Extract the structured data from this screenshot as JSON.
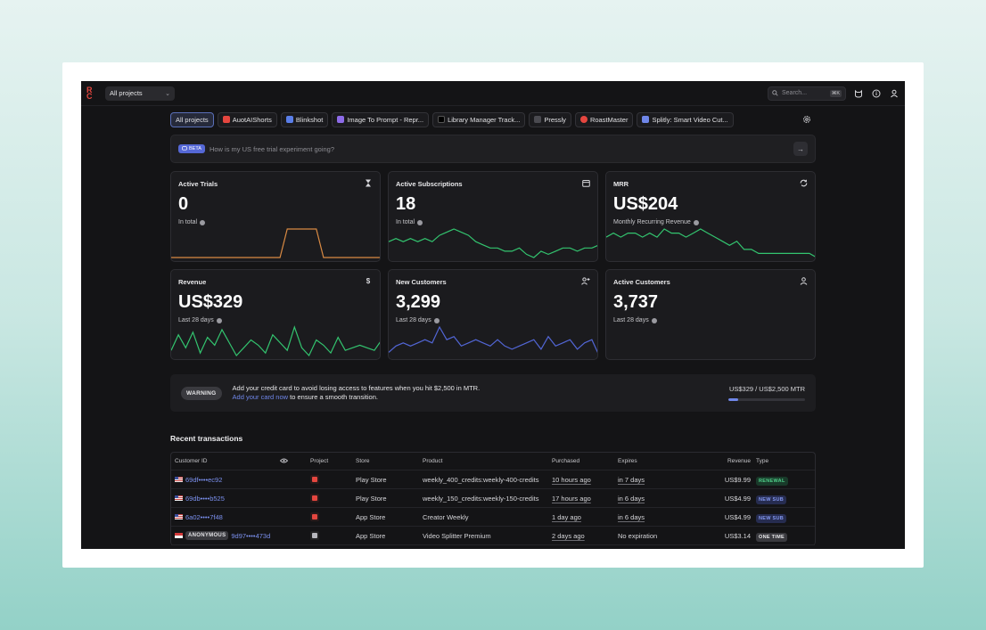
{
  "topbar": {
    "logo": [
      "R",
      "C"
    ],
    "project_select": "All projects",
    "search_placeholder": "Search...",
    "search_shortcut": "⌘K"
  },
  "tabs": [
    {
      "label": "All projects",
      "active": true,
      "icon": ""
    },
    {
      "label": "AuotAIShorts",
      "icon_color": "#e5463f"
    },
    {
      "label": "Blinkshot",
      "icon_color": "#5a7ee8"
    },
    {
      "label": "Image To Prompt - Repr...",
      "icon_color": "#8d6be8"
    },
    {
      "label": "Library Manager Track...",
      "icon_color": "#2a2a2e"
    },
    {
      "label": "Pressly",
      "icon_color": "#3a3a3f"
    },
    {
      "label": "RoastMaster",
      "icon_color": "#e5463f"
    },
    {
      "label": "Splitly: Smart Video Cut...",
      "icon_color": "#6f86e8"
    }
  ],
  "ask": {
    "badge": "BETA",
    "placeholder": "How is my US free trial experiment going?"
  },
  "cards": [
    {
      "title": "Active Trials",
      "icon": "hourglass-icon",
      "value": "0",
      "sub": "In total"
    },
    {
      "title": "Active Subscriptions",
      "icon": "calendar-icon",
      "value": "18",
      "sub": "In total"
    },
    {
      "title": "MRR",
      "icon": "refresh-icon",
      "value": "US$204",
      "sub": "Monthly Recurring Revenue"
    },
    {
      "title": "Revenue",
      "icon": "dollar-icon",
      "value": "US$329",
      "sub": "Last 28 days"
    },
    {
      "title": "New Customers",
      "icon": "add-user-icon",
      "value": "3,299",
      "sub": "Last 28 days"
    },
    {
      "title": "Active Customers",
      "icon": "user-icon",
      "value": "3,737",
      "sub": "Last 28 days"
    }
  ],
  "warning": {
    "badge": "WARNING",
    "line1": "Add your credit card to avoid losing access to features when you hit $2,500 in MTR.",
    "link": "Add your card now",
    "line2_rest": " to ensure a smooth transition.",
    "amount": "US$329 / US$2,500 MTR",
    "progress_fraction": 0.13
  },
  "recent": {
    "title": "Recent transactions",
    "columns": {
      "customer": "Customer ID",
      "project": "Project",
      "store": "Store",
      "product": "Product",
      "purchased": "Purchased",
      "expires": "Expires",
      "revenue": "Revenue",
      "type": "Type"
    },
    "rows": [
      {
        "flag": "us",
        "anon": "",
        "customer": "69df••••ec92",
        "store": "Play Store",
        "product": "weekly_400_credits:weekly-400-credits",
        "purchased": "10 hours ago",
        "expires": "in 7 days",
        "revenue": "US$9.99",
        "type": "RENEWAL",
        "type_style": "renewal"
      },
      {
        "flag": "us",
        "anon": "",
        "customer": "69db••••b525",
        "store": "Play Store",
        "product": "weekly_150_credits:weekly-150-credits",
        "purchased": "17 hours ago",
        "expires": "in 6 days",
        "revenue": "US$4.99",
        "type": "NEW SUB",
        "type_style": "new"
      },
      {
        "flag": "us",
        "anon": "",
        "customer": "6a02••••7f48",
        "store": "App Store",
        "product": "Creator Weekly",
        "purchased": "1 day ago",
        "expires": "in 6 days",
        "revenue": "US$4.99",
        "type": "NEW SUB",
        "type_style": "new"
      },
      {
        "flag": "sg",
        "anon": "ANONYMOUS",
        "customer": "9d97••••473d",
        "store": "App Store",
        "product": "Video Splitter Premium",
        "purchased": "2 days ago",
        "expires": "No expiration",
        "revenue": "US$3.14",
        "type": "ONE TIME",
        "type_style": "one"
      }
    ]
  },
  "sparklines": {
    "trials": [
      0,
      0,
      0,
      0,
      0,
      0,
      0,
      0,
      0,
      0,
      0,
      0,
      0,
      0,
      0,
      0,
      1,
      1,
      1,
      1,
      1,
      0,
      0,
      0,
      0,
      0,
      0,
      0,
      0,
      0
    ],
    "subs": [
      18,
      19,
      18,
      19,
      18,
      19,
      18,
      20,
      21,
      22,
      21,
      20,
      18,
      17,
      16,
      16,
      15,
      15,
      16,
      14,
      13,
      15,
      14,
      15,
      16,
      16,
      15,
      16,
      16,
      17
    ],
    "mrr": [
      20,
      21,
      20,
      21,
      21,
      20,
      21,
      20,
      22,
      21,
      21,
      20,
      21,
      22,
      21,
      20,
      19,
      18,
      19,
      17,
      17,
      16,
      16,
      16,
      16,
      16,
      16,
      16,
      16,
      15
    ],
    "revenue": [
      8,
      14,
      9,
      15,
      7,
      13,
      10,
      16,
      11,
      6,
      9,
      12,
      10,
      7,
      14,
      11,
      8,
      17,
      9,
      6,
      12,
      10,
      7,
      13,
      8,
      9,
      10,
      9,
      8,
      12
    ],
    "new_customers": [
      8,
      10,
      11,
      10,
      11,
      12,
      11,
      16,
      12,
      13,
      10,
      11,
      12,
      11,
      10,
      12,
      10,
      9,
      10,
      11,
      12,
      9,
      13,
      10,
      11,
      12,
      9,
      11,
      12,
      7
    ],
    "colors": {
      "trials": "#d98a43",
      "green": "#33c46f",
      "blue": "#5266d6"
    }
  }
}
